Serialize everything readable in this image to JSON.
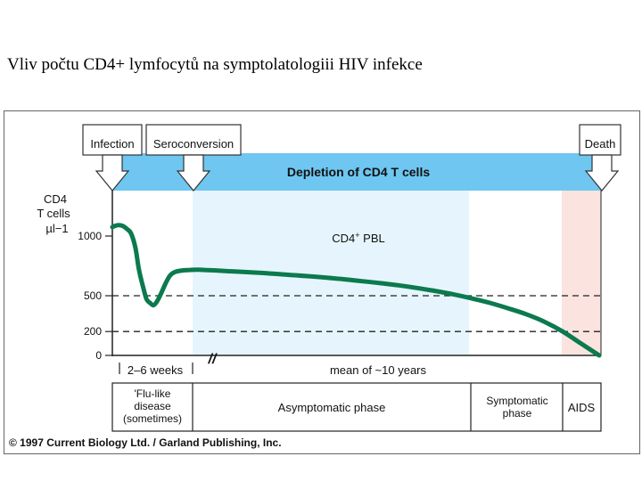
{
  "slide": {
    "title": "Vliv počtu CD4+ lymfocytů na  symptolatologiii HIV infekce"
  },
  "chart_data": {
    "type": "line",
    "title": "",
    "banner": "Depletion of CD4 T cells",
    "ylabel": [
      "CD4",
      "T cells",
      "µl−1"
    ],
    "yticks": [
      0,
      200,
      500,
      1000
    ],
    "ylim": [
      0,
      1200
    ],
    "reference_lines": [
      500,
      200
    ],
    "events": [
      "Infection",
      "Seroconversion",
      "Death"
    ],
    "region_label": "CD4+ PBL",
    "region_label_main": "CD4",
    "region_label_sup": "+",
    "region_label_suffix": " PBL",
    "x_labels": [
      "2–6 weeks",
      "mean of ~10 years"
    ],
    "axis_break": "//",
    "phases": [
      "'Flu-like disease (sometimes)",
      "Asymptomatic phase",
      "Symptomatic phase",
      "AIDS"
    ],
    "phase_lines": {
      "flu": [
        "'Flu-like",
        "disease",
        "(sometimes)"
      ],
      "asymptomatic": [
        "Asymptomatic phase"
      ],
      "symptomatic": [
        "Symptomatic",
        "phase"
      ],
      "aids": [
        "AIDS"
      ]
    },
    "series": [
      {
        "values": [
          [
            0.0,
            1075
          ],
          [
            0.03,
            1085
          ],
          [
            0.07,
            1092
          ],
          [
            0.12,
            1085
          ],
          [
            0.17,
            1060
          ],
          [
            0.22,
            1020
          ],
          [
            0.27,
            900
          ],
          [
            0.31,
            720
          ],
          [
            0.36,
            570
          ],
          [
            0.4,
            470
          ],
          [
            0.44,
            440
          ],
          [
            0.48,
            420
          ],
          [
            0.52,
            450
          ],
          [
            0.57,
            520
          ],
          [
            0.62,
            600
          ],
          [
            0.67,
            665
          ],
          [
            0.72,
            695
          ],
          [
            0.8,
            710
          ],
          [
            0.9,
            716
          ],
          [
            1.0,
            718
          ],
          [
            1.2,
            716
          ],
          [
            1.6,
            710
          ],
          [
            2,
            703
          ],
          [
            2.5,
            695
          ],
          [
            3,
            686
          ],
          [
            3.5,
            675
          ],
          [
            4,
            664
          ],
          [
            4.5,
            652
          ],
          [
            5,
            638
          ],
          [
            5.5,
            622
          ],
          [
            6,
            605
          ],
          [
            6.5,
            587
          ],
          [
            7,
            565
          ],
          [
            7.5,
            540
          ],
          [
            8,
            512
          ],
          [
            8.5,
            478
          ],
          [
            9,
            440
          ],
          [
            9.5,
            395
          ],
          [
            10,
            345
          ],
          [
            10.5,
            282
          ],
          [
            11,
            200
          ],
          [
            11.5,
            100
          ],
          [
            12,
            0
          ]
        ]
      }
    ],
    "colors": {
      "banner": "#6ec6f1",
      "region": "#e6f5fd",
      "aids_region": "#fbe4e0",
      "curve": "#0b7a4e"
    },
    "copyright": "© 1997 Current Biology Ltd. / Garland Publishing, Inc."
  }
}
